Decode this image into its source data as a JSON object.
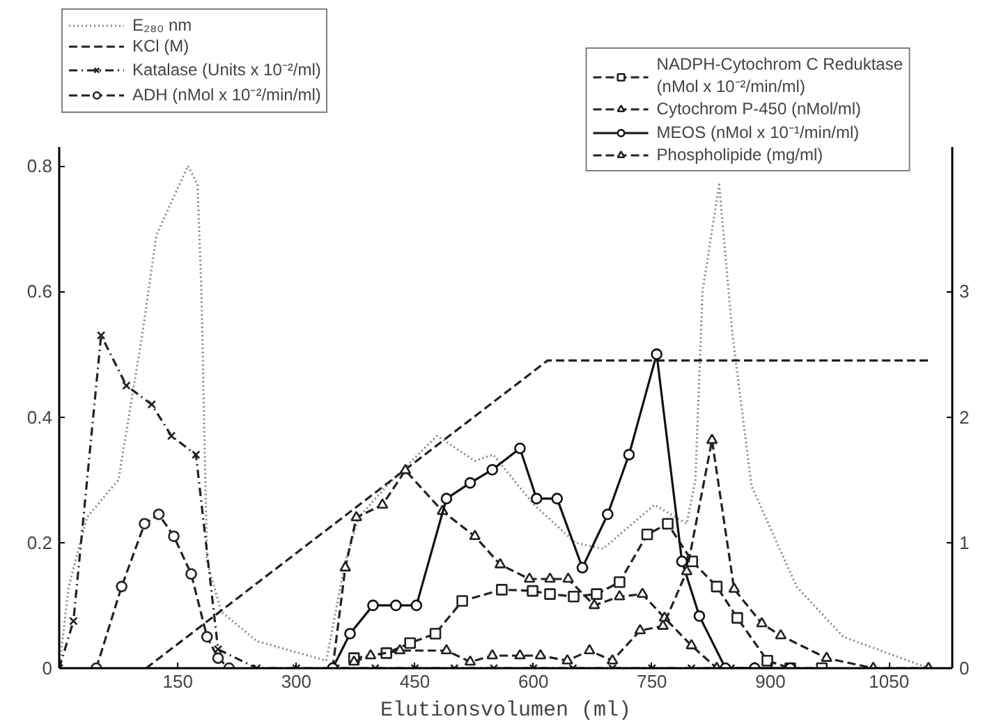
{
  "chart_data": {
    "type": "line",
    "xlabel": "Elutionsvolumen (ml)",
    "xlim": [
      0,
      1130
    ],
    "xticks": [
      150,
      300,
      450,
      600,
      750,
      900,
      1050
    ],
    "ylim": [
      0,
      0.83
    ],
    "yticks": [
      0,
      0.2,
      0.4,
      0.6,
      0.8
    ],
    "y2lim": [
      0,
      4.15
    ],
    "y2ticks": [
      0,
      1,
      2,
      3
    ],
    "grid": false,
    "legend": "top",
    "series": [
      {
        "name": "E₂₈₀ nm",
        "color": "#888888",
        "line_style": "dotted",
        "marker": "none",
        "x": [
          0,
          12,
          35,
          75,
          105,
          123,
          163,
          175,
          180,
          187,
          205,
          250,
          338,
          362,
          379,
          414,
          438,
          478,
          526,
          549,
          601,
          653,
          688,
          753,
          794,
          805,
          814,
          835,
          852,
          876,
          933,
          992,
          1100
        ],
        "values": [
          0,
          0.13,
          0.24,
          0.3,
          0.53,
          0.69,
          0.8,
          0.77,
          0.6,
          0.17,
          0.09,
          0.043,
          0.012,
          0.17,
          0.24,
          0.29,
          0.32,
          0.37,
          0.33,
          0.34,
          0.26,
          0.2,
          0.19,
          0.26,
          0.23,
          0.3,
          0.6,
          0.77,
          0.53,
          0.29,
          0.13,
          0.05,
          0
        ]
      },
      {
        "name": "KCl (M)",
        "color": "#222222",
        "line_style": "dashed",
        "marker": "none",
        "x": [
          110,
          618,
          1100
        ],
        "values": [
          0,
          0.49,
          0.49
        ]
      },
      {
        "name": "Katalase (Units x 10⁻²/ml)",
        "color": "#222222",
        "line_style": "dashdot",
        "marker": "cross",
        "x": [
          0,
          18,
          53,
          85,
          117,
          142,
          173,
          201,
          250,
          300,
          350,
          400,
          450,
          500,
          550,
          600,
          650,
          700,
          750,
          800,
          850
        ],
        "values": [
          0,
          0.075,
          0.53,
          0.45,
          0.42,
          0.37,
          0.34,
          0.03,
          0,
          0,
          0,
          0,
          0,
          0,
          0,
          0,
          0,
          0,
          0,
          0,
          0
        ]
      },
      {
        "name": "ADH (nMol x 10⁻²/min/ml)",
        "color": "#222222",
        "line_style": "dashed",
        "marker": "circle",
        "x": [
          47,
          79,
          108,
          126,
          145,
          167,
          187,
          201,
          215
        ],
        "values": [
          0,
          0.13,
          0.23,
          0.245,
          0.21,
          0.15,
          0.05,
          0.016,
          0
        ]
      },
      {
        "name": "NADPH-Cytochrom C Reduktase\n(nMol x 10⁻²/min/ml)",
        "color": "#222222",
        "line_style": "dashed",
        "marker": "square",
        "x": [
          373,
          414,
          444,
          476,
          510,
          560,
          599,
          621,
          651,
          680,
          709,
          744,
          770,
          801,
          832,
          858,
          896,
          925,
          965
        ],
        "values": [
          0.016,
          0.024,
          0.04,
          0.055,
          0.107,
          0.125,
          0.123,
          0.118,
          0.114,
          0.118,
          0.137,
          0.213,
          0.23,
          0.17,
          0.13,
          0.08,
          0.012,
          0,
          0
        ]
      },
      {
        "name": "Cytochrom P-450 (nMol/ml)",
        "color": "#222222",
        "line_style": "dashed",
        "marker": "triangle",
        "x": [
          346,
          362,
          376,
          409,
          438,
          485,
          526,
          558,
          595,
          621,
          644,
          677,
          709,
          738,
          766,
          800,
          832,
          880
        ],
        "values": [
          0,
          0.16,
          0.24,
          0.26,
          0.315,
          0.25,
          0.21,
          0.165,
          0.142,
          0.142,
          0.142,
          0.1,
          0.114,
          0.118,
          0.08,
          0.036,
          0,
          0
        ]
      },
      {
        "name": "MEOS (nMol x 10⁻¹/min/ml)",
        "color": "#111111",
        "line_style": "solid",
        "marker": "circle",
        "x": [
          346,
          368,
          397,
          426,
          452,
          490,
          520,
          548,
          583,
          604,
          630,
          662,
          694,
          721,
          756,
          788,
          810,
          843,
          880,
          925
        ],
        "values": [
          0,
          0.055,
          0.1,
          0.1,
          0.1,
          0.27,
          0.295,
          0.316,
          0.35,
          0.27,
          0.27,
          0.16,
          0.245,
          0.34,
          0.5,
          0.17,
          0.083,
          0,
          0,
          0
        ]
      },
      {
        "name": "Phospholipide (mg/ml)",
        "color": "#222222",
        "line_style": "dashed",
        "marker": "triangle",
        "x": [
          373,
          394,
          431,
          490,
          520,
          548,
          583,
          609,
          643,
          671,
          700,
          735,
          764,
          794,
          826,
          854,
          889,
          913,
          971,
          1030,
          1100
        ],
        "values": [
          0.01,
          0.02,
          0.028,
          0.028,
          0.01,
          0.02,
          0.02,
          0.02,
          0.012,
          0.028,
          0.012,
          0.06,
          0.067,
          0.154,
          0.363,
          0.126,
          0.071,
          0.052,
          0.016,
          0,
          0
        ]
      }
    ]
  }
}
